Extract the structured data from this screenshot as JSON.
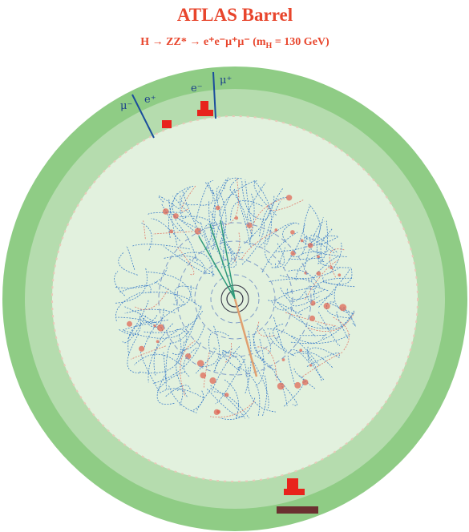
{
  "header": {
    "title": "ATLAS Barrel",
    "subtitle": {
      "text": "H → ZZ* → e⁺e⁻μ⁺μ⁻ (m",
      "subscript": "H",
      "tail": " = 130 GeV)"
    }
  },
  "track_labels": [
    "μ⁻",
    "e⁺",
    "e⁻",
    "μ⁺"
  ]
}
